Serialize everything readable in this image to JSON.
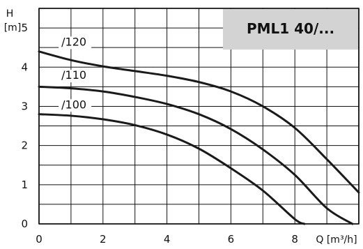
{
  "chart_data": {
    "type": "line",
    "title": "PML1 40/...",
    "xlabel": "Q [m³/h]",
    "ylabel_line1": "H",
    "ylabel_line2": "[m]",
    "xlim": [
      0,
      10
    ],
    "ylim": [
      0,
      5.5
    ],
    "x_ticks": [
      "0",
      "2",
      "4",
      "6",
      "8"
    ],
    "y_ticks": [
      "0",
      "1",
      "2",
      "3",
      "4",
      "5"
    ],
    "grid": true,
    "series": [
      {
        "name": "/120",
        "x": [
          0,
          1,
          2,
          3,
          4,
          5,
          6,
          7,
          8,
          9,
          10
        ],
        "y": [
          4.4,
          4.18,
          4.02,
          3.9,
          3.78,
          3.62,
          3.38,
          3.0,
          2.45,
          1.65,
          0.8
        ]
      },
      {
        "name": "/110",
        "x": [
          0,
          1,
          2,
          3,
          4,
          5,
          6,
          7,
          8,
          9,
          9.8
        ],
        "y": [
          3.5,
          3.46,
          3.38,
          3.24,
          3.06,
          2.8,
          2.42,
          1.9,
          1.25,
          0.4,
          0.0
        ]
      },
      {
        "name": "/100",
        "x": [
          0,
          1,
          2,
          3,
          4,
          5,
          6,
          7,
          8,
          8.3
        ],
        "y": [
          2.8,
          2.76,
          2.67,
          2.52,
          2.28,
          1.92,
          1.42,
          0.85,
          0.12,
          0.0
        ]
      }
    ],
    "colors": {
      "line": "#1a1a1a",
      "grid": "#111111",
      "title_box": "#d3d3d3",
      "background": "#ffffff"
    }
  }
}
